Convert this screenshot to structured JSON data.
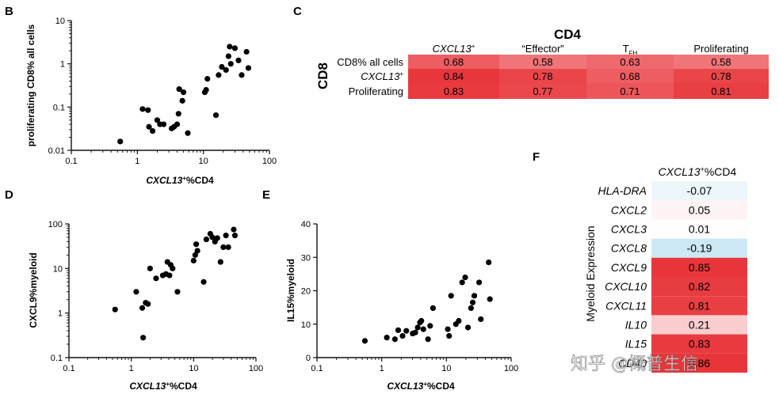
{
  "colors": {
    "axis": "#111111",
    "point": "#000000",
    "heat_high": "#e8353a",
    "heat_mid": "#f4a7a9",
    "heat_neg": "#c8e7f3"
  },
  "watermark": {
    "text": "知乎 @概普生信"
  },
  "panels": {
    "B": {
      "letter": "B",
      "xlabel_prefix": "CXCL13",
      "xlabel_sup": "+",
      "xlabel_suffix": "%CD4",
      "ylabel": "proliferating CD8% all cells",
      "xticks": [
        "0.1",
        "1",
        "10",
        "100"
      ],
      "yticks": [
        "0.01",
        "0.1",
        "1",
        "10"
      ]
    },
    "C": {
      "letter": "C",
      "title": "CD4",
      "row_group_label": "CD8",
      "col_headers": [
        {
          "text": "CXCL13",
          "sup": "+",
          "sub": "",
          "italic": true
        },
        {
          "text": "“Effector”",
          "sup": "",
          "sub": "",
          "italic": false
        },
        {
          "text": "T",
          "sup": "",
          "sub": "FH",
          "italic": false
        },
        {
          "text": "Proliferating",
          "sup": "",
          "sub": "",
          "italic": false
        }
      ],
      "rows": [
        {
          "label": "CD8% all cells",
          "label_sup": "",
          "italic": false,
          "values": [
            "0.68",
            "0.58",
            "0.63",
            "0.58"
          ]
        },
        {
          "label": "CXCL13",
          "label_sup": "+",
          "italic": true,
          "values": [
            "0.84",
            "0.78",
            "0.68",
            "0.78"
          ]
        },
        {
          "label": "Proliferating",
          "label_sup": "",
          "italic": false,
          "values": [
            "0.83",
            "0.77",
            "0.71",
            "0.81"
          ]
        }
      ]
    },
    "D": {
      "letter": "D",
      "xlabel_prefix": "CXCL13",
      "xlabel_sup": "+",
      "xlabel_suffix": "%CD4",
      "ylabel": "CXCL9%myeloid",
      "xticks": [
        "0.1",
        "1",
        "10",
        "100"
      ],
      "yticks": [
        "0.1",
        "1",
        "10",
        "100"
      ]
    },
    "E": {
      "letter": "E",
      "xlabel_prefix": "CXCL13",
      "xlabel_sup": "+",
      "xlabel_suffix": "%CD4",
      "ylabel": "IL15%myeloid",
      "xticks": [
        "0.1",
        "1",
        "10",
        "100"
      ],
      "yticks": [
        "0",
        "10",
        "20",
        "30",
        "40"
      ]
    },
    "F": {
      "letter": "F",
      "header_prefix": "CXCL13",
      "header_sup": "+",
      "header_suffix": "%CD4",
      "side_label": "Myeloid Expression",
      "rows": [
        {
          "gene": "HLA-DRA",
          "value": "-0.07"
        },
        {
          "gene": "CXCL2",
          "value": "0.05"
        },
        {
          "gene": "CXCL3",
          "value": "0.01"
        },
        {
          "gene": "CXCL8",
          "value": "-0.19"
        },
        {
          "gene": "CXCL9",
          "value": "0.85"
        },
        {
          "gene": "CXCL10",
          "value": "0.82"
        },
        {
          "gene": "CXCL11",
          "value": "0.81"
        },
        {
          "gene": "IL10",
          "value": "0.21"
        },
        {
          "gene": "IL15",
          "value": "0.83"
        },
        {
          "gene": "CD40",
          "value": "0.86"
        }
      ]
    }
  },
  "chart_data": [
    {
      "panel": "B",
      "type": "scatter",
      "xscale": "log",
      "yscale": "log",
      "xlim": [
        0.1,
        100
      ],
      "ylim": [
        0.01,
        10
      ],
      "xlabel": "CXCL13+%CD4",
      "ylabel": "proliferating CD8% all cells",
      "points": [
        [
          0.55,
          0.016
        ],
        [
          1.2,
          0.09
        ],
        [
          1.45,
          0.085
        ],
        [
          1.5,
          0.035
        ],
        [
          1.7,
          0.028
        ],
        [
          2.0,
          0.05
        ],
        [
          2.2,
          0.04
        ],
        [
          2.5,
          0.04
        ],
        [
          3.3,
          0.032
        ],
        [
          3.6,
          0.035
        ],
        [
          4.0,
          0.04
        ],
        [
          4.2,
          0.07
        ],
        [
          4.3,
          0.26
        ],
        [
          4.8,
          0.14
        ],
        [
          5.0,
          0.22
        ],
        [
          5.8,
          0.025
        ],
        [
          10.5,
          0.22
        ],
        [
          11.0,
          0.25
        ],
        [
          11.5,
          0.45
        ],
        [
          15.5,
          0.065
        ],
        [
          17.0,
          0.55
        ],
        [
          19.0,
          0.85
        ],
        [
          22.0,
          0.72
        ],
        [
          24.0,
          1.5
        ],
        [
          25.0,
          2.5
        ],
        [
          26.0,
          1.0
        ],
        [
          30.0,
          2.3
        ],
        [
          34.0,
          1.2
        ],
        [
          38.0,
          0.55
        ],
        [
          45.0,
          1.9
        ],
        [
          48.0,
          0.8
        ]
      ]
    },
    {
      "panel": "D",
      "type": "scatter",
      "xscale": "log",
      "yscale": "log",
      "xlim": [
        0.1,
        100
      ],
      "ylim": [
        0.1,
        100
      ],
      "xlabel": "CXCL13+%CD4",
      "ylabel": "CXCL9%myeloid",
      "points": [
        [
          0.55,
          1.2
        ],
        [
          1.2,
          3.0
        ],
        [
          1.5,
          1.3
        ],
        [
          1.55,
          0.28
        ],
        [
          1.7,
          1.7
        ],
        [
          1.85,
          1.6
        ],
        [
          2.0,
          10.0
        ],
        [
          2.5,
          6.0
        ],
        [
          3.2,
          7.0
        ],
        [
          3.6,
          7.5
        ],
        [
          3.8,
          14.0
        ],
        [
          4.1,
          7.0
        ],
        [
          4.3,
          12.0
        ],
        [
          4.6,
          10.0
        ],
        [
          5.5,
          3.0
        ],
        [
          10.0,
          15.0
        ],
        [
          10.6,
          20.0
        ],
        [
          11.0,
          35.0
        ],
        [
          11.5,
          25.0
        ],
        [
          14.5,
          5.0
        ],
        [
          16.0,
          45.0
        ],
        [
          18.5,
          60.0
        ],
        [
          20.0,
          50.0
        ],
        [
          22.0,
          40.0
        ],
        [
          24.0,
          48.0
        ],
        [
          27.0,
          14.0
        ],
        [
          30.0,
          30.0
        ],
        [
          33.0,
          55.0
        ],
        [
          36.0,
          30.0
        ],
        [
          44.0,
          75.0
        ],
        [
          46.0,
          55.0
        ]
      ]
    },
    {
      "panel": "E",
      "type": "scatter",
      "xscale": "log",
      "yscale": "linear",
      "xlim": [
        0.1,
        100
      ],
      "ylim": [
        0,
        40
      ],
      "xlabel": "CXCL13+%CD4",
      "ylabel": "IL15%myeloid",
      "points": [
        [
          0.55,
          5.0
        ],
        [
          1.2,
          6.0
        ],
        [
          1.6,
          5.5
        ],
        [
          1.8,
          8.2
        ],
        [
          2.1,
          6.5
        ],
        [
          2.4,
          8.0
        ],
        [
          3.0,
          7.2
        ],
        [
          3.3,
          7.5
        ],
        [
          3.6,
          9.0
        ],
        [
          3.9,
          10.5
        ],
        [
          4.1,
          11.0
        ],
        [
          4.4,
          8.5
        ],
        [
          5.2,
          5.5
        ],
        [
          5.6,
          9.5
        ],
        [
          6.2,
          14.8
        ],
        [
          10.5,
          8.5
        ],
        [
          11.0,
          6.5
        ],
        [
          11.8,
          18.5
        ],
        [
          14.0,
          10.0
        ],
        [
          15.5,
          11.0
        ],
        [
          17.5,
          22.5
        ],
        [
          19.5,
          24.0
        ],
        [
          21.5,
          9.0
        ],
        [
          24.0,
          14.8
        ],
        [
          25.5,
          16.5
        ],
        [
          27.0,
          18.5
        ],
        [
          32.0,
          22.5
        ],
        [
          34.0,
          11.5
        ],
        [
          45.0,
          28.5
        ],
        [
          47.0,
          17.5
        ]
      ]
    },
    {
      "panel": "C",
      "type": "heatmap",
      "title": "CD4",
      "row_labels": [
        "CD8% all cells",
        "CXCL13+",
        "Proliferating"
      ],
      "col_labels": [
        "CXCL13+",
        "“Effector”",
        "TFH",
        "Proliferating"
      ],
      "values": [
        [
          0.68,
          0.58,
          0.63,
          0.58
        ],
        [
          0.84,
          0.78,
          0.68,
          0.78
        ],
        [
          0.83,
          0.77,
          0.71,
          0.81
        ]
      ]
    },
    {
      "panel": "F",
      "type": "heatmap",
      "title": "CXCL13+%CD4",
      "row_labels": [
        "HLA-DRA",
        "CXCL2",
        "CXCL3",
        "CXCL8",
        "CXCL9",
        "CXCL10",
        "CXCL11",
        "IL10",
        "IL15",
        "CD40"
      ],
      "values": [
        -0.07,
        0.05,
        0.01,
        -0.19,
        0.85,
        0.82,
        0.81,
        0.21,
        0.83,
        0.86
      ]
    }
  ]
}
